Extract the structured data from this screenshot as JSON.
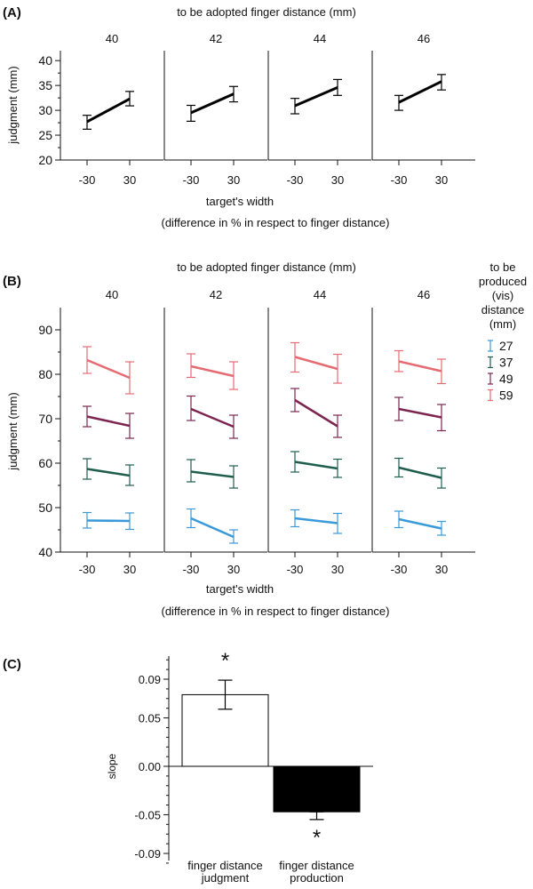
{
  "chart_data": [
    {
      "type": "line",
      "panel_label": "(A)",
      "title": "to be adopted finger distance (mm)",
      "xlabel": "target's width",
      "xlabel_sub": "(difference in % in respect to finger distance)",
      "ylabel": "judgment (mm)",
      "categories": [
        "-30",
        "30"
      ],
      "yticks": [
        20,
        25,
        30,
        35,
        40
      ],
      "ylim": [
        20,
        42
      ],
      "facets": [
        {
          "label": "40",
          "series": [
            {
              "name": "judgment",
              "values": [
                27.7,
                32.3
              ],
              "err_low": [
                26.2,
                30.9
              ],
              "err_high": [
                29.0,
                33.8
              ]
            }
          ]
        },
        {
          "label": "42",
          "series": [
            {
              "name": "judgment",
              "values": [
                29.5,
                33.3
              ],
              "err_low": [
                27.8,
                31.7
              ],
              "err_high": [
                31.0,
                34.8
              ]
            }
          ]
        },
        {
          "label": "44",
          "series": [
            {
              "name": "judgment",
              "values": [
                30.9,
                34.6
              ],
              "err_low": [
                29.3,
                33.0
              ],
              "err_high": [
                32.4,
                36.2
              ]
            }
          ]
        },
        {
          "label": "46",
          "series": [
            {
              "name": "judgment",
              "values": [
                31.6,
                35.8
              ],
              "err_low": [
                30.0,
                34.1
              ],
              "err_high": [
                33.0,
                37.2
              ]
            }
          ]
        }
      ]
    },
    {
      "type": "line",
      "panel_label": "(B)",
      "title": "to be adopted finger distance (mm)",
      "xlabel": "target's width",
      "xlabel_sub": "(difference in % in respect to finger distance)",
      "ylabel": "judgment (mm)",
      "categories": [
        "-30",
        "30"
      ],
      "yticks": [
        40,
        50,
        60,
        70,
        80,
        90
      ],
      "ylim": [
        40,
        95
      ],
      "legend": {
        "title": [
          "to be",
          "produced",
          "(vis)",
          "distance",
          "(mm)"
        ],
        "entries": [
          {
            "name": "27",
            "color": "#3a9ad9"
          },
          {
            "name": "37",
            "color": "#1f5e4f"
          },
          {
            "name": "49",
            "color": "#7d2550"
          },
          {
            "name": "59",
            "color": "#e56b73"
          }
        ]
      },
      "facets": [
        {
          "label": "40",
          "series": [
            {
              "name": "27",
              "values": [
                47.1,
                47.0
              ],
              "err_low": [
                45.4,
                45.1
              ],
              "err_high": [
                48.9,
                48.8
              ]
            },
            {
              "name": "37",
              "values": [
                58.7,
                57.2
              ],
              "err_low": [
                56.4,
                55.0
              ],
              "err_high": [
                61.0,
                59.6
              ]
            },
            {
              "name": "49",
              "values": [
                70.5,
                68.4
              ],
              "err_low": [
                68.2,
                65.6
              ],
              "err_high": [
                72.8,
                71.2
              ]
            },
            {
              "name": "59",
              "values": [
                83.2,
                79.2
              ],
              "err_low": [
                80.2,
                75.6
              ],
              "err_high": [
                86.2,
                82.8
              ]
            }
          ]
        },
        {
          "label": "42",
          "series": [
            {
              "name": "27",
              "values": [
                47.6,
                43.4
              ],
              "err_low": [
                45.5,
                42.0
              ],
              "err_high": [
                49.7,
                45.0
              ]
            },
            {
              "name": "37",
              "values": [
                58.1,
                56.9
              ],
              "err_low": [
                55.8,
                54.4
              ],
              "err_high": [
                60.8,
                59.4
              ]
            },
            {
              "name": "49",
              "values": [
                72.2,
                68.2
              ],
              "err_low": [
                69.6,
                65.6
              ],
              "err_high": [
                75.1,
                70.8
              ]
            },
            {
              "name": "59",
              "values": [
                81.8,
                79.6
              ],
              "err_low": [
                79.3,
                76.6
              ],
              "err_high": [
                84.6,
                82.8
              ]
            }
          ]
        },
        {
          "label": "44",
          "series": [
            {
              "name": "27",
              "values": [
                47.6,
                46.5
              ],
              "err_low": [
                45.7,
                44.2
              ],
              "err_high": [
                49.5,
                48.7
              ]
            },
            {
              "name": "37",
              "values": [
                60.3,
                58.8
              ],
              "err_low": [
                58.0,
                56.8
              ],
              "err_high": [
                62.6,
                60.9
              ]
            },
            {
              "name": "49",
              "values": [
                74.2,
                68.3
              ],
              "err_low": [
                71.6,
                65.8
              ],
              "err_high": [
                76.8,
                70.8
              ]
            },
            {
              "name": "59",
              "values": [
                83.9,
                81.2
              ],
              "err_low": [
                80.5,
                78.0
              ],
              "err_high": [
                87.1,
                84.5
              ]
            }
          ]
        },
        {
          "label": "46",
          "series": [
            {
              "name": "27",
              "values": [
                47.4,
                45.3
              ],
              "err_low": [
                45.5,
                43.8
              ],
              "err_high": [
                49.2,
                46.9
              ]
            },
            {
              "name": "37",
              "values": [
                59.0,
                56.7
              ],
              "err_low": [
                56.9,
                54.4
              ],
              "err_high": [
                61.1,
                58.9
              ]
            },
            {
              "name": "49",
              "values": [
                72.2,
                70.3
              ],
              "err_low": [
                69.6,
                67.3
              ],
              "err_high": [
                74.8,
                73.2
              ]
            },
            {
              "name": "59",
              "values": [
                82.9,
                80.7
              ],
              "err_low": [
                80.6,
                77.9
              ],
              "err_high": [
                85.3,
                83.4
              ]
            }
          ]
        }
      ]
    },
    {
      "type": "bar",
      "panel_label": "(C)",
      "ylabel": "slope",
      "categories": [
        [
          "finger distance",
          "judgment"
        ],
        [
          "finger distance",
          "production"
        ]
      ],
      "values": [
        0.074,
        -0.047
      ],
      "err_low": [
        0.059,
        -0.055
      ],
      "err_high": [
        0.089,
        -0.047
      ],
      "fills": [
        "#ffffff",
        "#000000"
      ],
      "significance": [
        "*",
        "*"
      ],
      "yticks": [
        "0.09",
        "0.05",
        "0.00",
        "-0.05",
        "-0.09"
      ],
      "ylim": [
        -0.1,
        0.11
      ]
    }
  ]
}
